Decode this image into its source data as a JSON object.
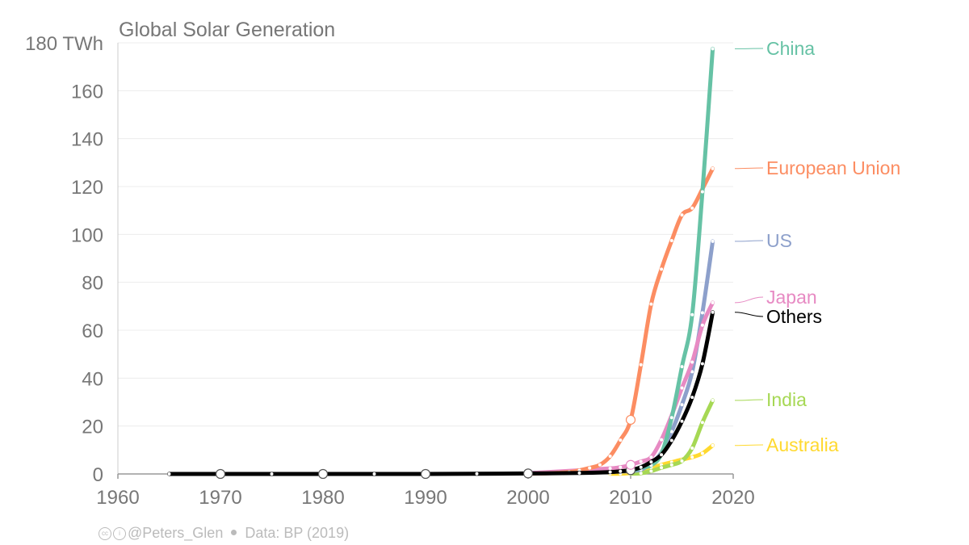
{
  "chart_data": {
    "type": "line",
    "title": "Global Solar Generation",
    "y_unit": "TWh",
    "xlim": [
      1960,
      2020
    ],
    "ylim": [
      0,
      180
    ],
    "x_ticks": [
      "1960",
      "1970",
      "1980",
      "1990",
      "2000",
      "2010",
      "2020"
    ],
    "y_ticks": [
      "0",
      "20",
      "40",
      "60",
      "80",
      "100",
      "120",
      "140",
      "160",
      "180 TWh"
    ],
    "grid": "horizontal",
    "legend_placement": "right-end-labels",
    "series": [
      {
        "name": "China",
        "color": "#66c2a5",
        "x": [
          2010,
          2011,
          2012,
          2013,
          2014,
          2015,
          2016,
          2017,
          2018
        ],
        "y": [
          0.7,
          2.6,
          3.6,
          8.4,
          23.5,
          44.8,
          66.5,
          117.8,
          177.5
        ]
      },
      {
        "name": "European Union",
        "color": "#fc8d62",
        "x": [
          2000,
          2001,
          2002,
          2003,
          2004,
          2005,
          2006,
          2007,
          2008,
          2009,
          2010,
          2011,
          2012,
          2013,
          2014,
          2015,
          2016,
          2017,
          2018
        ],
        "y": [
          0.1,
          0.2,
          0.3,
          0.5,
          0.8,
          1.5,
          2.5,
          3.8,
          7.4,
          14.1,
          22.6,
          45.6,
          70.9,
          85.5,
          97.4,
          108.1,
          111,
          119,
          127.5
        ]
      },
      {
        "name": "US",
        "color": "#8da0cb",
        "x": [
          2000,
          2005,
          2008,
          2009,
          2010,
          2011,
          2012,
          2013,
          2014,
          2015,
          2016,
          2017,
          2018
        ],
        "y": [
          0.5,
          0.6,
          0.9,
          1.0,
          1.2,
          1.8,
          4.3,
          9.0,
          17.7,
          28.9,
          42.7,
          67.3,
          97.1
        ]
      },
      {
        "name": "Japan",
        "color": "#e78ac3",
        "x": [
          2000,
          2005,
          2008,
          2009,
          2010,
          2011,
          2012,
          2013,
          2014,
          2015,
          2016,
          2017,
          2018
        ],
        "y": [
          0.3,
          1.5,
          2.3,
          2.8,
          3.8,
          5.2,
          7.0,
          14.3,
          24.5,
          35.9,
          46.7,
          62.1,
          71.5
        ]
      },
      {
        "name": "Others",
        "color": "#000000",
        "x": [
          1965,
          1970,
          1975,
          1980,
          1985,
          1990,
          1995,
          2000,
          2005,
          2008,
          2009,
          2010,
          2011,
          2012,
          2013,
          2014,
          2015,
          2016,
          2017,
          2018
        ],
        "y": [
          0,
          0,
          0,
          0,
          0,
          0,
          0.1,
          0.2,
          0.4,
          0.8,
          1.1,
          1.6,
          2.8,
          5.0,
          8.0,
          14.0,
          22.0,
          32.0,
          46.0,
          67.5
        ]
      },
      {
        "name": "India",
        "color": "#a6d854",
        "x": [
          2010,
          2011,
          2012,
          2013,
          2014,
          2015,
          2016,
          2017,
          2018
        ],
        "y": [
          0.1,
          0.3,
          1.2,
          2.6,
          3.8,
          5.4,
          10.8,
          21.5,
          30.7
        ]
      },
      {
        "name": "Australia",
        "color": "#ffd92f",
        "x": [
          2008,
          2009,
          2010,
          2011,
          2012,
          2013,
          2014,
          2015,
          2016,
          2017,
          2018
        ],
        "y": [
          0.1,
          0.1,
          0.4,
          1.5,
          2.6,
          3.8,
          4.9,
          6.0,
          7.0,
          8.6,
          11.9
        ]
      }
    ],
    "end_label_values": [
      177.5,
      127.5,
      97.1,
      71.5,
      67.5,
      30.7,
      11.9
    ]
  },
  "footer": {
    "handle": "@Peters_Glen",
    "source": "Data: BP (2019)"
  }
}
